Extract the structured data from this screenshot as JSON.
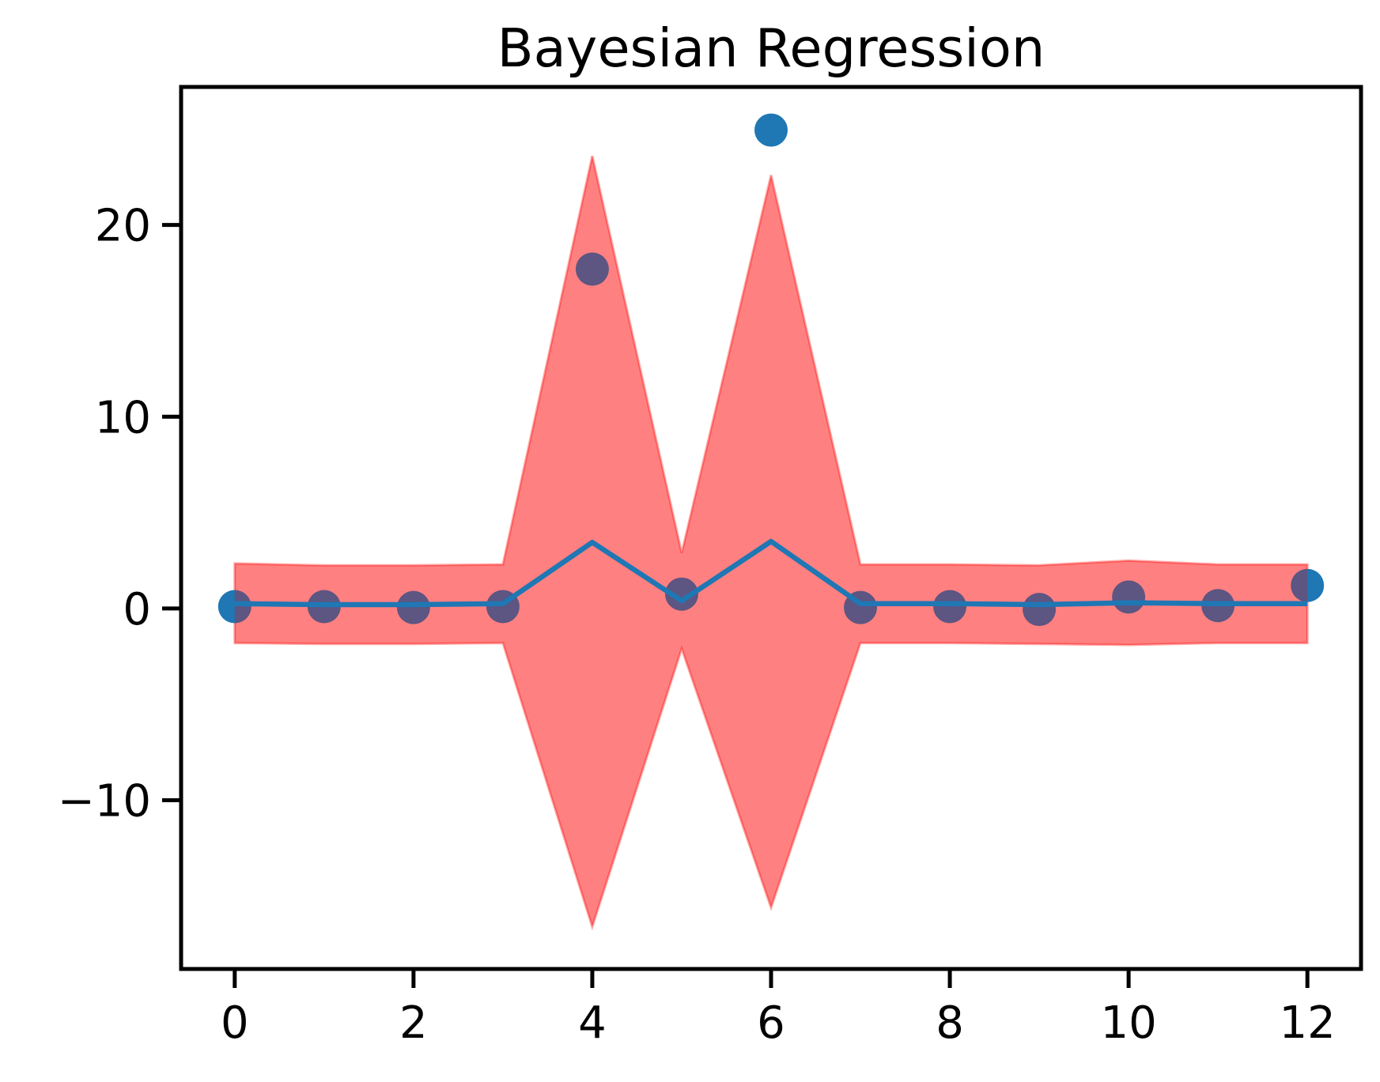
{
  "chart_data": {
    "type": "line",
    "title": "Bayesian Regression",
    "xlabel": "",
    "ylabel": "",
    "xlim": [
      -0.6,
      12.6
    ],
    "ylim": [
      -18.8,
      27.2
    ],
    "x_ticks": [
      0,
      2,
      4,
      6,
      8,
      10,
      12
    ],
    "x_tick_labels": [
      "0",
      "2",
      "4",
      "6",
      "8",
      "10",
      "12"
    ],
    "y_ticks": [
      -10,
      0,
      10,
      20
    ],
    "y_tick_labels": [
      "−10",
      "0",
      "10",
      "20"
    ],
    "grid": false,
    "legend": "none",
    "series": [
      {
        "kind": "band",
        "x": [
          0,
          1,
          2,
          3,
          4,
          5,
          6,
          7,
          8,
          9,
          10,
          11,
          12
        ],
        "upper": [
          2.35,
          2.25,
          2.25,
          2.3,
          23.6,
          2.9,
          22.6,
          2.3,
          2.3,
          2.25,
          2.5,
          2.3,
          2.3
        ],
        "lower": [
          -1.8,
          -1.85,
          -1.85,
          -1.8,
          -16.6,
          -2.1,
          -15.6,
          -1.8,
          -1.8,
          -1.85,
          -1.9,
          -1.8,
          -1.8
        ],
        "color": "#ff0000",
        "opacity": 0.3
      },
      {
        "kind": "scatter",
        "x": [
          0,
          1,
          2,
          3,
          4,
          5,
          6,
          7,
          8,
          9,
          10,
          11,
          12
        ],
        "y": [
          0.1,
          0.1,
          0.05,
          0.1,
          17.7,
          0.75,
          24.95,
          0.05,
          0.1,
          -0.05,
          0.6,
          0.15,
          1.2
        ],
        "color": "#1f77b4"
      },
      {
        "kind": "line",
        "x": [
          0,
          1,
          2,
          3,
          4,
          5,
          6,
          7,
          8,
          9,
          10,
          11,
          12
        ],
        "y": [
          0.25,
          0.2,
          0.2,
          0.25,
          3.45,
          0.4,
          3.5,
          0.25,
          0.25,
          0.2,
          0.3,
          0.25,
          0.25
        ],
        "color": "#1f77b4"
      }
    ]
  }
}
